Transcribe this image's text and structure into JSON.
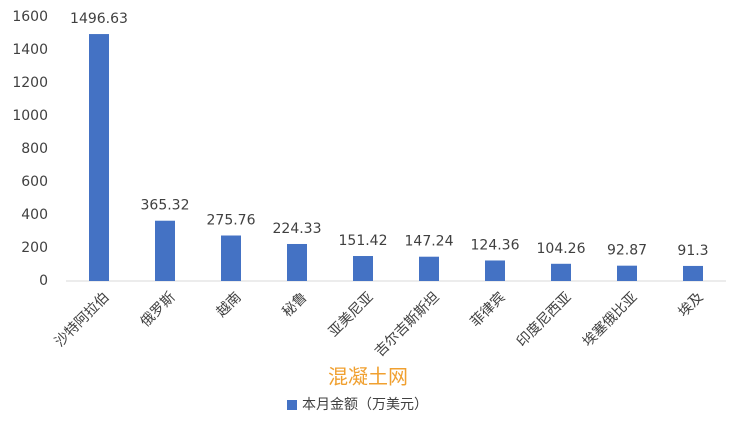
{
  "chart_data": {
    "type": "bar",
    "categories": [
      "沙特阿拉伯",
      "俄罗斯",
      "越南",
      "秘鲁",
      "亚美尼亚",
      "吉尔吉斯斯坦",
      "菲律宾",
      "印度尼西亚",
      "埃塞俄比亚",
      "埃及"
    ],
    "series": [
      {
        "name": "本月金额（万美元）",
        "color": "#4472c4",
        "values": [
          1496.63,
          365.32,
          275.76,
          224.33,
          151.42,
          147.24,
          124.36,
          104.26,
          92.87,
          91.3
        ]
      }
    ],
    "ylim": [
      0,
      1600
    ],
    "yticks": [
      0,
      200,
      400,
      600,
      800,
      1000,
      1200,
      1400,
      1600
    ],
    "grid": false,
    "legend": "bottom",
    "watermark": "混凝土网"
  }
}
